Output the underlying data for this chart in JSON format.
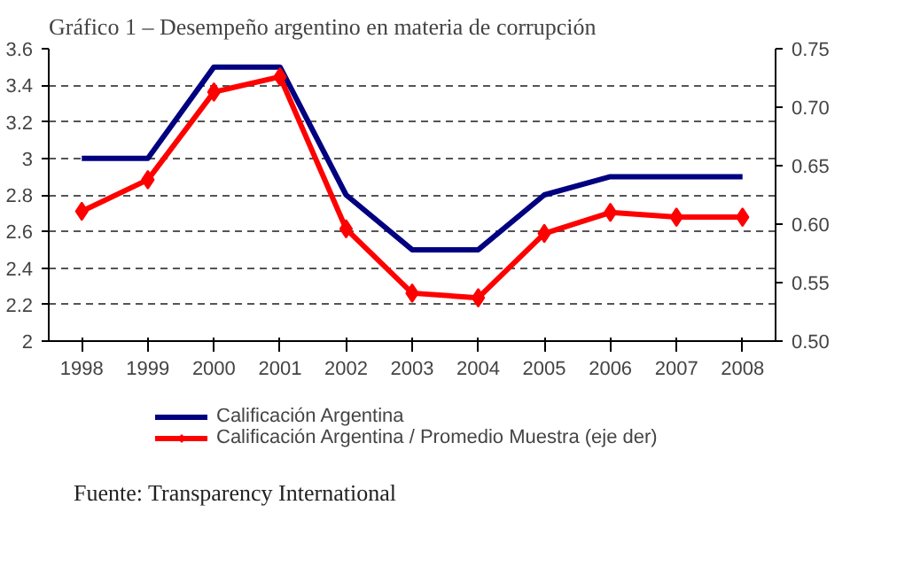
{
  "chart_data": {
    "type": "line",
    "title": "Gráfico 1 – Desempeño argentino en materia de corrupción",
    "categories": [
      "1998",
      "1999",
      "2000",
      "2001",
      "2002",
      "2003",
      "2004",
      "2005",
      "2006",
      "2007",
      "2008"
    ],
    "series": [
      {
        "name": "Calificación Argentina",
        "color": "#000080",
        "values": [
          3.0,
          3.0,
          3.5,
          3.5,
          2.8,
          2.5,
          2.5,
          2.8,
          2.9,
          2.9,
          2.9
        ],
        "marker": "none"
      },
      {
        "name": "Calificación Argentina / Promedio Muestra (eje der)",
        "color": "#ff0000",
        "axis": "y2",
        "marker": "diamond",
        "values": [
          0.611,
          0.638,
          0.713,
          0.726,
          0.596,
          0.541,
          0.537,
          0.592,
          0.61,
          0.606,
          0.606
        ]
      }
    ],
    "ylim": [
      2,
      3.6
    ],
    "yticks": [
      2,
      2.2,
      2.4,
      2.6,
      2.8,
      3,
      3.2,
      3.4,
      3.6
    ],
    "y2lim": [
      0.5,
      0.75
    ],
    "y2ticks": [
      {
        "value": 0.5,
        "label": "0.50"
      },
      {
        "value": 0.55,
        "label": "0.55"
      },
      {
        "value": 0.6,
        "label": "0.60"
      },
      {
        "value": 0.65,
        "label": "0.65"
      },
      {
        "value": 0.7,
        "label": "0.70"
      },
      {
        "value": 0.75,
        "label": "0.75"
      }
    ],
    "grid": "y",
    "legend": "bottom",
    "line_style": "solid",
    "annotations": [
      "Fuente: Transparency International"
    ]
  }
}
